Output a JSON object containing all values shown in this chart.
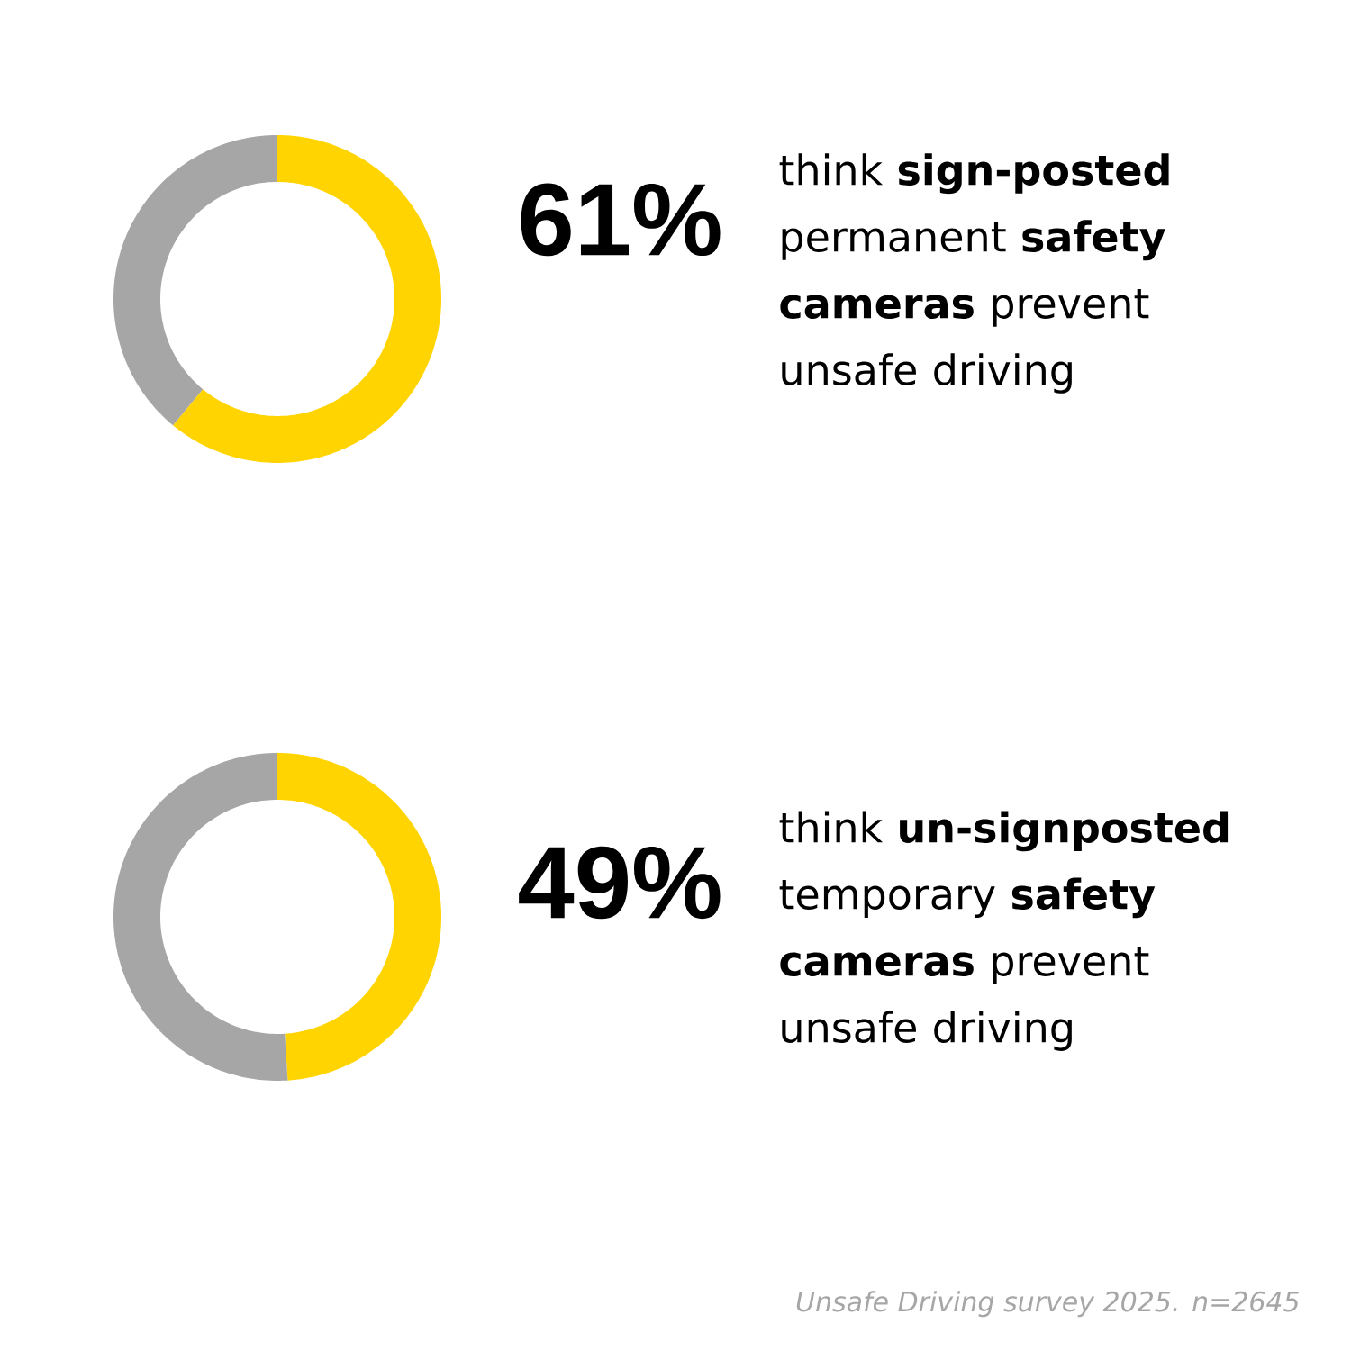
{
  "chart_data": [
    {
      "type": "donut",
      "title": "think **sign-posted** permanent **safety cameras** prevent unsafe driving",
      "categories": [
        null,
        null
      ],
      "values": [
        61,
        39
      ],
      "colors": [
        "#ffd400",
        "#a6a6a6"
      ],
      "value_labels": [
        "61%",
        null
      ]
    },
    {
      "type": "donut",
      "title": "think **un-signposted** temporary **safety cameras** prevent unsafe driving",
      "categories": [
        null,
        null
      ],
      "values": [
        49,
        51
      ],
      "colors": [
        "#ffd400",
        "#a6a6a6"
      ],
      "value_labels": [
        "49%",
        null
      ],
      "annotations": [
        "Unsafe Driving survey 2025. n=2645"
      ]
    }
  ]
}
